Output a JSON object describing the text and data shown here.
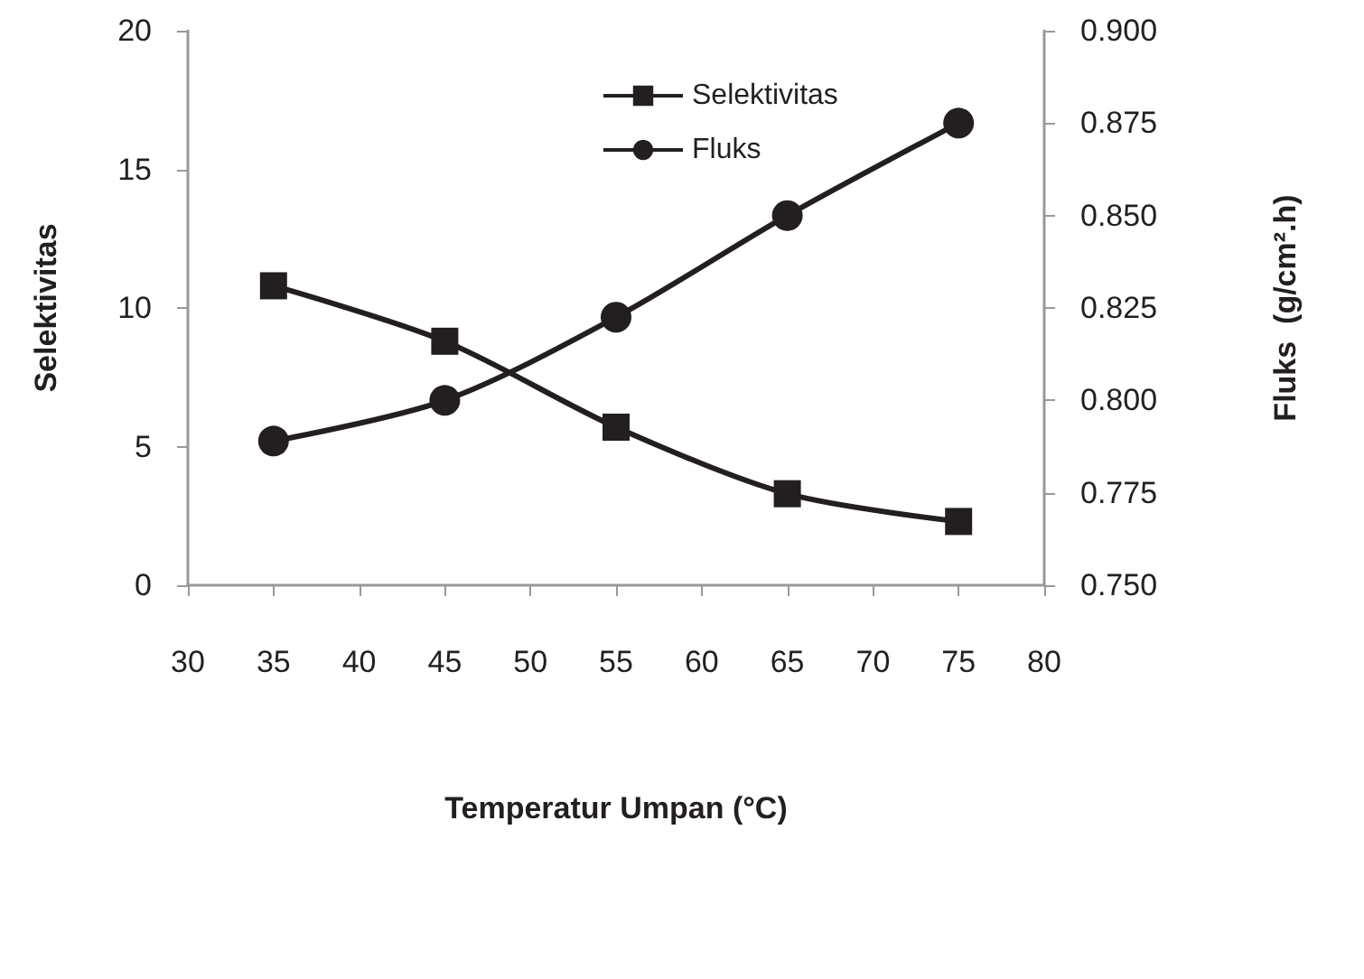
{
  "chart_data": {
    "type": "line",
    "xlabel": "Temperatur Umpan (°C)",
    "ylabel": "Selektivitas",
    "y2label": "Fluks  (g/cm².h)",
    "x": [
      35,
      45,
      55,
      65,
      75
    ],
    "series": [
      {
        "name": "Selektivitas",
        "color": "#231f20",
        "values": [
          10.8,
          8.8,
          5.7,
          3.3,
          2.3
        ],
        "marker": "square"
      },
      {
        "name": "Fluks",
        "color": "#231f20",
        "values": [
          0.789,
          0.8,
          0.8225,
          0.85,
          0.875
        ],
        "axis": "y2",
        "marker": "circle"
      }
    ],
    "xlim": [
      30,
      80
    ],
    "xticks": [
      30,
      35,
      40,
      45,
      50,
      55,
      60,
      65,
      70,
      75,
      80
    ],
    "ylim": [
      0,
      20
    ],
    "yticks": [
      0,
      5,
      10,
      15,
      20
    ],
    "y2lim": [
      0.75,
      0.9
    ],
    "y2ticks": [
      {
        "value": 0.75,
        "label": "0.750"
      },
      {
        "value": 0.775,
        "label": "0.775"
      },
      {
        "value": 0.8,
        "label": "0.800"
      },
      {
        "value": 0.825,
        "label": "0.825"
      },
      {
        "value": 0.85,
        "label": "0.850"
      },
      {
        "value": 0.875,
        "label": "0.875"
      },
      {
        "value": 0.9,
        "label": "0.900"
      }
    ],
    "legend": "top",
    "grid": false,
    "line_style": "solid"
  }
}
